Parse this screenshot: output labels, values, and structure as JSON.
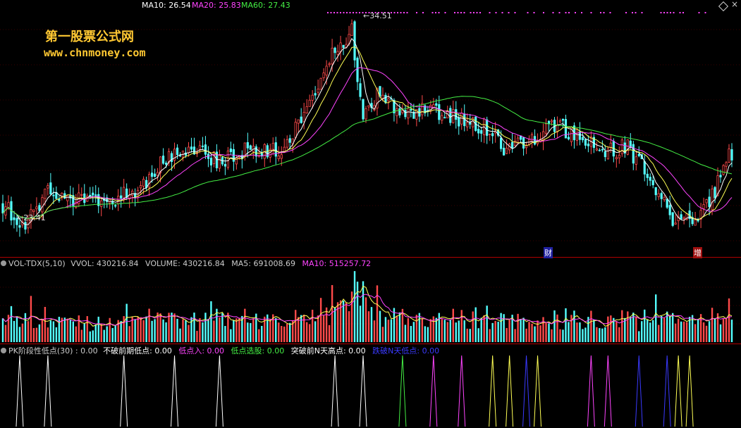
{
  "watermark": {
    "site_name": "第一股票公式网",
    "site_url": "www.chnmoney.com"
  },
  "colors": {
    "up": "#ff4a4a",
    "down": "#54ffff",
    "ma_white": "#ffffff",
    "ma_yellow": "#ffff55",
    "ma_magenta": "#ff44ff",
    "ma_green": "#44ee44",
    "divider": "#b00000",
    "grid": "#3a0000",
    "blue": "#3a3aff",
    "gold": "#ffc832"
  },
  "price_panel": {
    "ma10": {
      "label": "MA10: 26.54"
    },
    "ma20": {
      "label": "MA20: 25.83"
    },
    "ma60": {
      "label": "MA60: 27.43"
    },
    "high_label": "34.51",
    "low_label": "23.41",
    "marker_cai": "财",
    "marker_zeng": "增"
  },
  "volume_panel": {
    "title": "VOL-TDX(5,10)",
    "vvol": "VVOL: 430216.84",
    "volume": "VOLUME: 430216.84",
    "ma5": "MA5: 691008.69",
    "ma10": "MA10: 515257.72"
  },
  "indicator_panel": {
    "title": "PK阶段性低点(30) : 0.00",
    "item1": "不破前期低点: 0.00",
    "item2": "低点入: 0.00",
    "item3": "低点选股: 0.00",
    "item4": "突破前N天高点: 0.00",
    "item5": "跌破N天低点: 0.00"
  },
  "chart_data": [
    {
      "type": "candlestick",
      "title": "",
      "ylim": [
        22.5,
        35.0
      ],
      "high": 34.51,
      "low": 23.41,
      "ma_last": {
        "MA10": 26.54,
        "MA20": 25.83,
        "MA60": 27.43
      },
      "trend_keypoints": [
        [
          0,
          25.0
        ],
        [
          8,
          24.0
        ],
        [
          16,
          25.7
        ],
        [
          28,
          25.2
        ],
        [
          40,
          25.4
        ],
        [
          50,
          26.0
        ],
        [
          58,
          27.5
        ],
        [
          66,
          28.0
        ],
        [
          76,
          27.3
        ],
        [
          86,
          27.8
        ],
        [
          98,
          27.8
        ],
        [
          106,
          29.3
        ],
        [
          116,
          32.5
        ],
        [
          124,
          34.0
        ],
        [
          128,
          29.5
        ],
        [
          134,
          31.0
        ],
        [
          140,
          30.0
        ],
        [
          150,
          29.8
        ],
        [
          162,
          29.5
        ],
        [
          172,
          29.0
        ],
        [
          178,
          27.8
        ],
        [
          188,
          28.5
        ],
        [
          196,
          29.2
        ],
        [
          206,
          28.3
        ],
        [
          214,
          27.8
        ],
        [
          222,
          28.0
        ],
        [
          232,
          26.0
        ],
        [
          238,
          24.0
        ],
        [
          246,
          24.3
        ],
        [
          252,
          25.5
        ],
        [
          258,
          27.5
        ]
      ]
    },
    {
      "type": "bar",
      "title": "VOL-TDX(5,10)",
      "ylim": [
        0,
        1400000
      ],
      "last": 430216.84,
      "ma5_last": 691008.69,
      "ma10_last": 515257.72
    },
    {
      "type": "line",
      "title": "PK阶段性低点(30)",
      "spikes": [
        {
          "x": 6,
          "color": "white"
        },
        {
          "x": 16,
          "color": "white"
        },
        {
          "x": 43,
          "color": "white"
        },
        {
          "x": 61,
          "color": "white"
        },
        {
          "x": 77,
          "color": "white"
        },
        {
          "x": 118,
          "color": "white"
        },
        {
          "x": 128,
          "color": "white"
        },
        {
          "x": 142,
          "color": "green"
        },
        {
          "x": 153,
          "color": "magenta"
        },
        {
          "x": 163,
          "color": "magenta"
        },
        {
          "x": 174,
          "color": "yellow"
        },
        {
          "x": 180,
          "color": "yellow"
        },
        {
          "x": 186,
          "color": "blue"
        },
        {
          "x": 190,
          "color": "yellow"
        },
        {
          "x": 209,
          "color": "magenta"
        },
        {
          "x": 215,
          "color": "magenta"
        },
        {
          "x": 226,
          "color": "blue"
        },
        {
          "x": 236,
          "color": "blue"
        },
        {
          "x": 240,
          "color": "yellow"
        },
        {
          "x": 244,
          "color": "yellow"
        }
      ]
    }
  ]
}
